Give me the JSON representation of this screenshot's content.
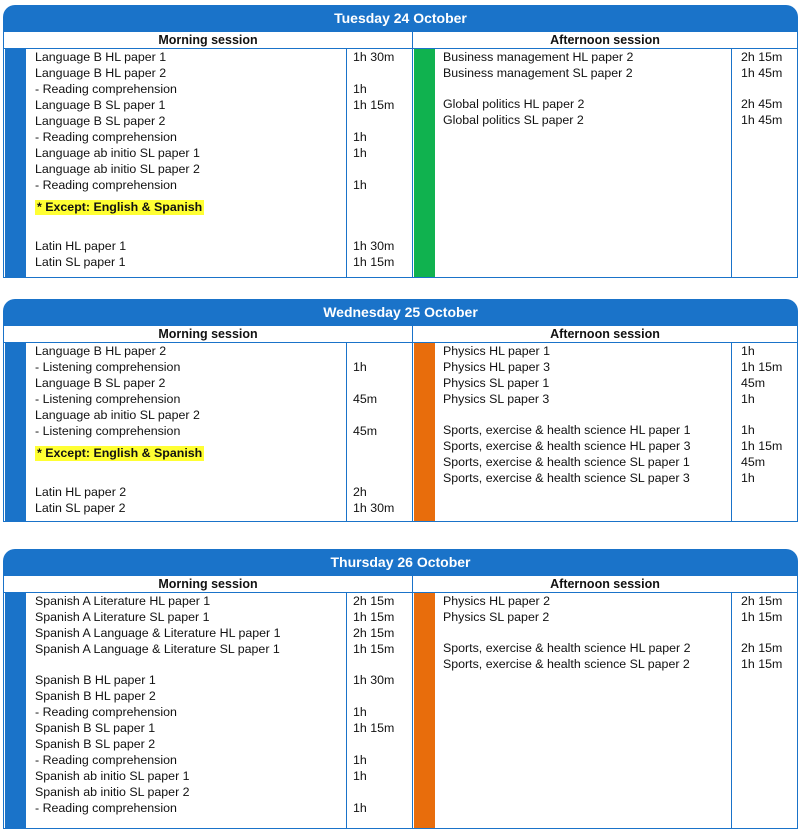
{
  "colors": {
    "header_blue": "#1a73c9",
    "green": "#10b24f",
    "orange": "#e86d0c",
    "highlight": "#ffff33"
  },
  "days": [
    {
      "title": "Tuesday 24 October",
      "morning_label": "Morning session",
      "afternoon_label": "Afternoon session",
      "morning": [
        {
          "name": "Language B HL paper 1",
          "time": "1h 30m"
        },
        {
          "name": "Language B HL paper 2",
          "time": ""
        },
        {
          "name": "- Reading comprehension",
          "time": "1h"
        },
        {
          "name": "Language B SL paper 1",
          "time": "1h 15m"
        },
        {
          "name": "Language B SL paper 2",
          "time": ""
        },
        {
          "name": "- Reading comprehension",
          "time": "1h"
        },
        {
          "name": "Language ab initio SL paper 1",
          "time": "1h"
        },
        {
          "name": "Language ab initio SL paper 2",
          "time": ""
        },
        {
          "name": "- Reading comprehension",
          "time": "1h"
        },
        {
          "note": "* Except: English & Spanish"
        },
        {
          "gap": true
        },
        {
          "name": "Latin HL paper 1",
          "time": "1h 30m"
        },
        {
          "name": "Latin SL paper 1",
          "time": "1h 15m"
        }
      ],
      "afternoon": [
        {
          "name": "Business management HL paper 2",
          "time": "2h 15m"
        },
        {
          "name": "Business management SL paper 2",
          "time": "1h 45m"
        },
        {
          "gap": true
        },
        {
          "name": "Global politics HL paper 2",
          "time": "2h 45m"
        },
        {
          "name": "Global politics SL paper 2",
          "time": "1h 45m"
        }
      ]
    },
    {
      "title": "Wednesday 25 October",
      "morning_label": "Morning session",
      "afternoon_label": "Afternoon session",
      "morning": [
        {
          "name": "Language B HL paper 2",
          "time": ""
        },
        {
          "name": "- Listening comprehension",
          "time": "1h"
        },
        {
          "name": "Language B SL paper 2",
          "time": ""
        },
        {
          "name": "- Listening comprehension",
          "time": "45m"
        },
        {
          "name": "Language ab initio SL paper 2",
          "time": ""
        },
        {
          "name": "- Listening comprehension",
          "time": "45m"
        },
        {
          "note": "* Except: English & Spanish"
        },
        {
          "gap": true
        },
        {
          "name": "Latin HL paper 2",
          "time": "2h"
        },
        {
          "name": "Latin SL paper 2",
          "time": "1h 30m"
        }
      ],
      "afternoon": [
        {
          "name": "Physics HL paper 1",
          "time": "1h"
        },
        {
          "name": "Physics HL paper 3",
          "time": "1h 15m"
        },
        {
          "name": "Physics SL paper 1",
          "time": "45m"
        },
        {
          "name": "Physics SL paper 3",
          "time": "1h"
        },
        {
          "gap": true
        },
        {
          "name": "Sports, exercise & health science HL paper 1",
          "time": "1h"
        },
        {
          "name": "Sports, exercise & health science HL paper 3",
          "time": "1h 15m"
        },
        {
          "name": "Sports, exercise & health science SL paper 1",
          "time": "45m"
        },
        {
          "name": "Sports, exercise & health science SL paper 3",
          "time": "1h"
        }
      ]
    },
    {
      "title": "Thursday 26 October",
      "morning_label": "Morning session",
      "afternoon_label": "Afternoon session",
      "morning": [
        {
          "name": "Spanish A Literature HL paper 1",
          "time": "2h 15m"
        },
        {
          "name": "Spanish A Literature SL paper 1",
          "time": "1h 15m"
        },
        {
          "name": "Spanish A Language & Literature HL paper 1",
          "time": "2h 15m"
        },
        {
          "name": "Spanish A Language & Literature SL paper 1",
          "time": "1h 15m"
        },
        {
          "gap": true
        },
        {
          "name": "Spanish B HL paper 1",
          "time": "1h 30m"
        },
        {
          "name": "Spanish B HL paper 2",
          "time": ""
        },
        {
          "name": "- Reading comprehension",
          "time": "1h"
        },
        {
          "name": "Spanish B SL paper 1",
          "time": "1h 15m"
        },
        {
          "name": "Spanish B SL paper 2",
          "time": ""
        },
        {
          "name": "- Reading comprehension",
          "time": "1h"
        },
        {
          "name": "Spanish ab initio SL paper 1",
          "time": "1h"
        },
        {
          "name": "Spanish ab initio SL paper 2",
          "time": ""
        },
        {
          "name": "- Reading comprehension",
          "time": "1h"
        }
      ],
      "afternoon": [
        {
          "name": "Physics HL paper 2",
          "time": "2h 15m"
        },
        {
          "name": "Physics SL paper 2",
          "time": "1h 15m"
        },
        {
          "gap": true
        },
        {
          "name": "Sports, exercise & health science HL paper 2",
          "time": "2h 15m"
        },
        {
          "name": "Sports, exercise & health science SL paper 2",
          "time": "1h 15m"
        }
      ]
    }
  ]
}
